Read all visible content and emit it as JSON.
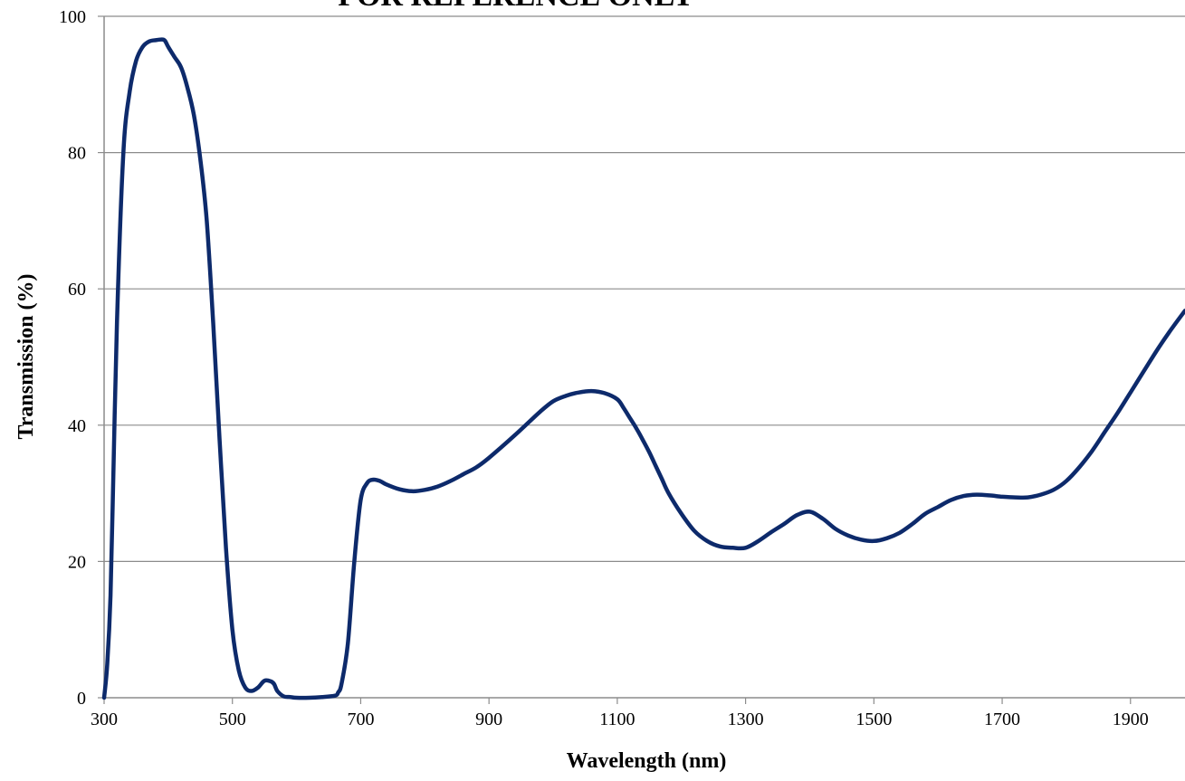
{
  "watermark": "FOR REFERENCE ONLY",
  "chart_data": {
    "type": "line",
    "title": "",
    "xlabel": "Wavelength (nm)",
    "ylabel": "Transmission (%)",
    "xlim": [
      300,
      1985
    ],
    "ylim": [
      0,
      100
    ],
    "x_ticks": [
      300,
      500,
      700,
      900,
      1100,
      1300,
      1500,
      1700,
      1900
    ],
    "y_ticks": [
      0,
      20,
      40,
      60,
      80,
      100
    ],
    "grid": "horizontal",
    "legend": "none",
    "line_color": "#0d2a6b",
    "series": [
      {
        "x": [
          300,
          305,
          310,
          315,
          320,
          330,
          340,
          350,
          360,
          370,
          380,
          390,
          395,
          400,
          410,
          420,
          430,
          440,
          450,
          460,
          470,
          480,
          490,
          500,
          510,
          520,
          530,
          540,
          550,
          560,
          565,
          570,
          580,
          590,
          600,
          620,
          640,
          660,
          665,
          670,
          680,
          690,
          700,
          710,
          720,
          730,
          740,
          760,
          780,
          800,
          820,
          840,
          860,
          880,
          900,
          940,
          980,
          1000,
          1020,
          1040,
          1060,
          1080,
          1100,
          1110,
          1120,
          1130,
          1140,
          1150,
          1160,
          1170,
          1180,
          1200,
          1220,
          1240,
          1260,
          1280,
          1300,
          1320,
          1340,
          1360,
          1380,
          1400,
          1420,
          1440,
          1460,
          1480,
          1500,
          1520,
          1540,
          1560,
          1580,
          1600,
          1620,
          1640,
          1660,
          1680,
          1700,
          1720,
          1740,
          1760,
          1780,
          1800,
          1820,
          1840,
          1860,
          1880,
          1900,
          1920,
          1940,
          1960,
          1985
        ],
        "y": [
          0,
          5,
          15,
          35,
          55,
          80,
          89,
          93.5,
          95.5,
          96.3,
          96.5,
          96.6,
          96.4,
          95.5,
          94,
          92.5,
          89.5,
          85.5,
          79,
          70,
          55,
          38,
          22,
          10,
          4,
          1.5,
          1,
          1.5,
          2.5,
          2.4,
          2,
          1,
          0.2,
          0.1,
          0,
          0,
          0.1,
          0.3,
          0.8,
          2,
          8,
          20,
          29,
          31.5,
          32,
          31.8,
          31.3,
          30.6,
          30.3,
          30.5,
          31,
          31.8,
          32.8,
          33.8,
          35.2,
          38.5,
          42,
          43.5,
          44.3,
          44.8,
          45,
          44.7,
          43.8,
          42.5,
          41,
          39.5,
          37.8,
          36,
          34,
          32,
          30,
          27,
          24.5,
          23,
          22.2,
          22,
          22,
          23,
          24.3,
          25.5,
          26.8,
          27.3,
          26.3,
          24.8,
          23.8,
          23.2,
          23,
          23.4,
          24.2,
          25.5,
          27,
          28,
          29,
          29.6,
          29.8,
          29.7,
          29.5,
          29.4,
          29.4,
          29.8,
          30.5,
          31.8,
          33.8,
          36.2,
          39,
          41.8,
          44.8,
          47.8,
          50.8,
          53.6,
          56.8
        ]
      }
    ]
  }
}
